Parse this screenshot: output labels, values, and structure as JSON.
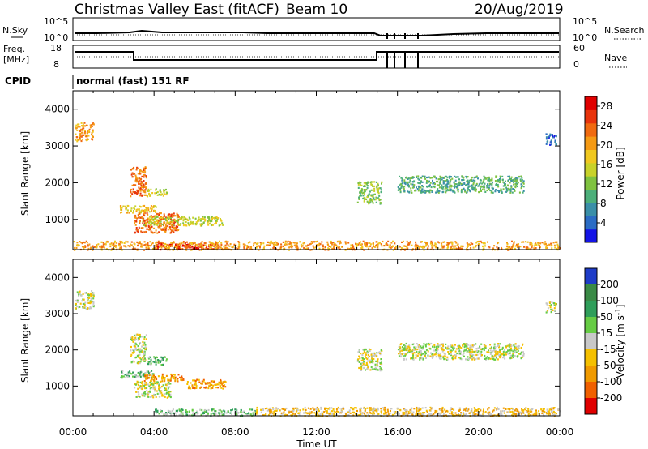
{
  "header": {
    "title": "Christmas Valley East (fitACF)",
    "beam": "Beam 10",
    "date": "20/Aug/2019",
    "program": "normal (fast) 151 RF"
  },
  "top_panels": {
    "nsky_label": "N.Sky",
    "nsearch_label": "N.Search",
    "noise_ticks": [
      "10^5",
      "10^0"
    ],
    "freq_label": "Freq.",
    "freq_unit": "[MHz]",
    "freq_ticks": [
      "18",
      "8"
    ],
    "nave_label": "Nave",
    "nave_ticks": [
      "60",
      "0"
    ],
    "cpid_label": "CPID"
  },
  "chart_data": [
    {
      "type": "heatmap",
      "name": "power",
      "ylabel": "Slant Range [km]",
      "xlabel": "Time UT",
      "x_ticks": [
        "00:00",
        "04:00",
        "08:00",
        "12:00",
        "16:00",
        "20:00",
        "00:00"
      ],
      "x_range_hours": [
        0,
        24
      ],
      "y_ticks": [
        1000,
        2000,
        3000,
        4000
      ],
      "y_range_km": [
        180,
        4500
      ],
      "colorbar": {
        "label": "Power [dB]",
        "ticks": [
          "4",
          "8",
          "12",
          "16",
          "20",
          "24",
          "28"
        ],
        "colors": [
          "#1414e6",
          "#2b6cc4",
          "#3a8fa8",
          "#4caf7a",
          "#7fc240",
          "#c8d22a",
          "#f0c820",
          "#f59a14",
          "#f06a10",
          "#e8340c",
          "#e00000"
        ]
      },
      "regions": [
        {
          "t0": 0.1,
          "t1": 1.0,
          "r0": 3150,
          "r1": 3650,
          "level": 7
        },
        {
          "t0": 2.8,
          "t1": 3.6,
          "r0": 1650,
          "r1": 2450,
          "level": 8
        },
        {
          "t0": 3.6,
          "t1": 4.6,
          "r0": 1650,
          "r1": 1850,
          "level": 5
        },
        {
          "t0": 2.3,
          "t1": 4.1,
          "r0": 1200,
          "r1": 1400,
          "level": 6
        },
        {
          "t0": 3.0,
          "t1": 5.2,
          "r0": 650,
          "r1": 1200,
          "level": 8
        },
        {
          "t0": 3.4,
          "t1": 7.4,
          "r0": 850,
          "r1": 1100,
          "level": 5
        },
        {
          "t0": 4.0,
          "t1": 7.0,
          "r0": 200,
          "r1": 380,
          "level": 10
        },
        {
          "t0": 14.0,
          "t1": 15.2,
          "r0": 1450,
          "r1": 2050,
          "level": 4
        },
        {
          "t0": 16.0,
          "t1": 22.2,
          "r0": 1750,
          "r1": 2200,
          "level": 3
        },
        {
          "t0": 23.3,
          "t1": 23.8,
          "r0": 3050,
          "r1": 3350,
          "level": 1
        },
        {
          "t0": 0.0,
          "t1": 24.0,
          "r0": 190,
          "r1": 430,
          "level": 7
        }
      ]
    },
    {
      "type": "heatmap",
      "name": "velocity",
      "ylabel": "Slant Range [km]",
      "xlabel": "Time UT",
      "x_ticks": [
        "00:00",
        "04:00",
        "08:00",
        "12:00",
        "16:00",
        "20:00",
        "00:00"
      ],
      "x_range_hours": [
        0,
        24
      ],
      "y_ticks": [
        1000,
        2000,
        3000,
        4000
      ],
      "y_range_km": [
        180,
        4500
      ],
      "colorbar": {
        "label": "Velocity [m s-1]",
        "unit_base": "Velocity [m s",
        "unit_exp": "-1",
        "unit_close": "]",
        "ticks": [
          "200",
          "100",
          "50",
          "15",
          "-15",
          "-50",
          "-100",
          "-200"
        ],
        "colors": [
          "#1e3cc8",
          "#3a8a46",
          "#2f9e5a",
          "#66cc44",
          "#c8c8c8",
          "#f5c000",
          "#f09a00",
          "#f06000",
          "#e00000"
        ]
      },
      "regions": [
        {
          "t0": 0.1,
          "t1": 1.0,
          "r0": 3150,
          "r1": 3650,
          "level": 4
        },
        {
          "t0": 2.8,
          "t1": 3.6,
          "r0": 1650,
          "r1": 2450,
          "level": 4
        },
        {
          "t0": 3.6,
          "t1": 4.6,
          "r0": 1600,
          "r1": 1850,
          "level": 3
        },
        {
          "t0": 2.3,
          "t1": 4.1,
          "r0": 1250,
          "r1": 1450,
          "level": 3
        },
        {
          "t0": 3.5,
          "t1": 5.5,
          "r0": 1150,
          "r1": 1350,
          "level": 6
        },
        {
          "t0": 5.6,
          "t1": 7.5,
          "r0": 950,
          "r1": 1200,
          "level": 6
        },
        {
          "t0": 3.0,
          "t1": 4.8,
          "r0": 700,
          "r1": 1150,
          "level": 4
        },
        {
          "t0": 4.0,
          "t1": 9.0,
          "r0": 200,
          "r1": 380,
          "level": 3
        },
        {
          "t0": 14.0,
          "t1": 15.2,
          "r0": 1450,
          "r1": 2050,
          "level": 4
        },
        {
          "t0": 16.0,
          "t1": 22.2,
          "r0": 1750,
          "r1": 2200,
          "level": 4
        },
        {
          "t0": 23.3,
          "t1": 23.8,
          "r0": 3050,
          "r1": 3350,
          "level": 4
        },
        {
          "t0": 9.0,
          "t1": 24.0,
          "r0": 190,
          "r1": 430,
          "level": 5
        }
      ]
    }
  ]
}
